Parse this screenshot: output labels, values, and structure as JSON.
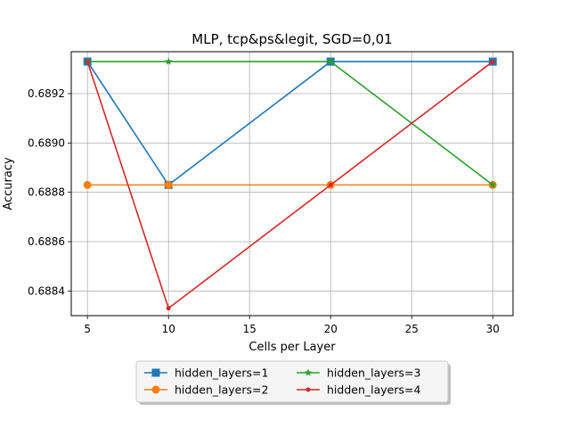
{
  "chart_data": {
    "type": "line",
    "title": "MLP, tcp&ps&legit, SGD=0,01",
    "xlabel": "Cells per Layer",
    "ylabel": "Accuracy",
    "x": [
      5,
      10,
      20,
      30
    ],
    "xlim": [
      4,
      31.25
    ],
    "ylim": [
      0.6883,
      0.68937
    ],
    "xticks": [
      5,
      10,
      15,
      20,
      25,
      30
    ],
    "xtick_labels": [
      "5",
      "10",
      "15",
      "20",
      "25",
      "30"
    ],
    "yticks": [
      0.6884,
      0.6886,
      0.6888,
      0.689,
      0.6892
    ],
    "ytick_labels": [
      "0.6884",
      "0.6886",
      "0.6888",
      "0.6890",
      "0.6892"
    ],
    "grid": true,
    "legend_position": "below",
    "series": [
      {
        "name": "hidden_layers=1",
        "values": [
          0.68933,
          0.68883,
          0.68933,
          0.68933
        ],
        "color": "#1f77b4",
        "marker": "square"
      },
      {
        "name": "hidden_layers=2",
        "values": [
          0.68883,
          0.68883,
          0.68883,
          0.68883
        ],
        "color": "#ff7f0e",
        "marker": "circle"
      },
      {
        "name": "hidden_layers=3",
        "values": [
          0.68933,
          0.68933,
          0.68933,
          0.68883
        ],
        "color": "#2ca02c",
        "marker": "star"
      },
      {
        "name": "hidden_layers=4",
        "values": [
          0.68933,
          0.68833,
          0.68883,
          0.68933
        ],
        "color": "#d62728",
        "marker": "dot"
      }
    ]
  }
}
